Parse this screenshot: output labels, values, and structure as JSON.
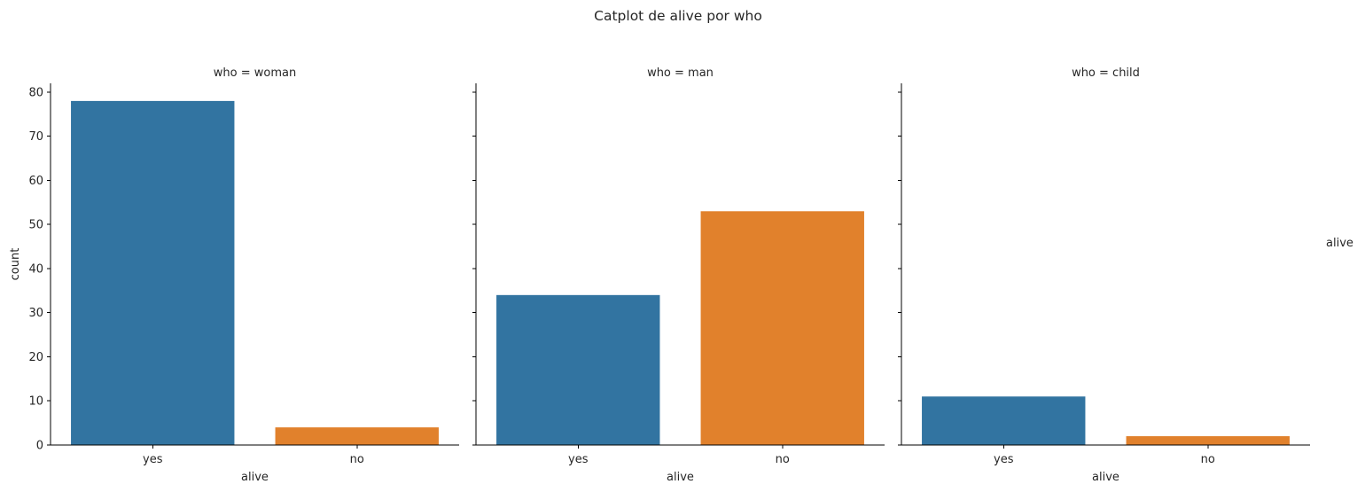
{
  "chart_data": {
    "type": "bar",
    "title": "Catplot de alive por who",
    "legend_title": "alive",
    "legend_position": "right",
    "grid": false,
    "xlabel": "alive",
    "ylabel": "count",
    "ylim": [
      0,
      82
    ],
    "yticks": [
      0,
      10,
      20,
      30,
      40,
      50,
      60,
      70,
      80
    ],
    "categories": [
      "yes",
      "no"
    ],
    "colors": {
      "yes": "#3274a1",
      "no": "#e1812c"
    },
    "facets": [
      {
        "title": "who = woman",
        "values": [
          78,
          4
        ]
      },
      {
        "title": "who = man",
        "values": [
          34,
          53
        ]
      },
      {
        "title": "who = child",
        "values": [
          11,
          2
        ]
      }
    ]
  }
}
